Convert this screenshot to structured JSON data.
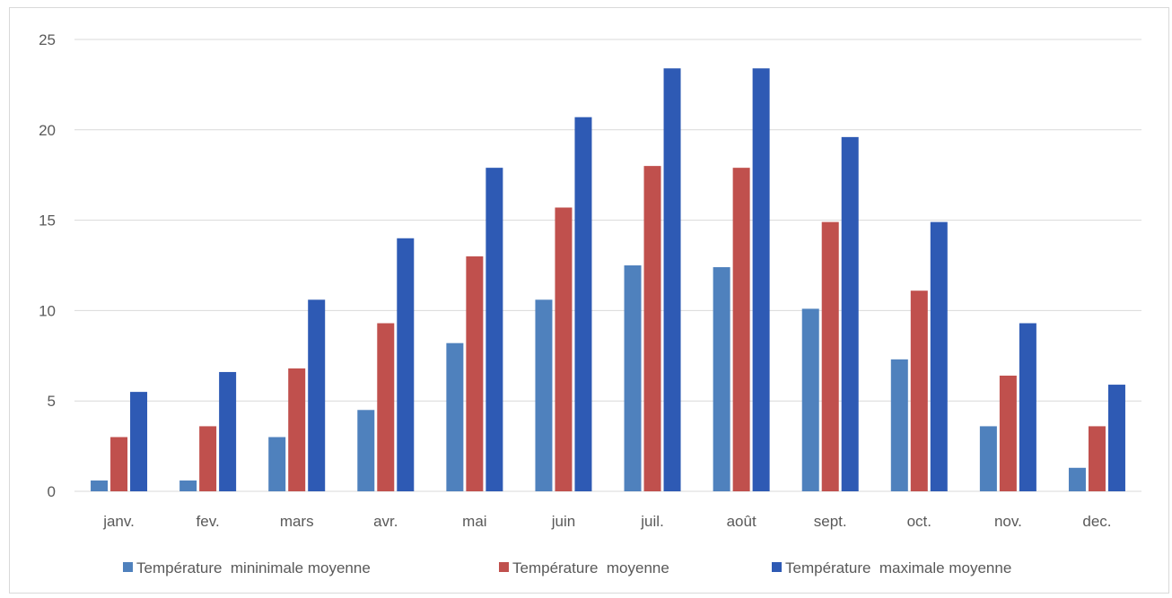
{
  "chart_data": {
    "type": "bar",
    "title": "",
    "xlabel": "",
    "ylabel": "",
    "ylim": [
      0,
      25
    ],
    "yticks": [
      0,
      5,
      10,
      15,
      20,
      25
    ],
    "grid": true,
    "legend_position": "bottom",
    "categories": [
      "janv.",
      "fev.",
      "mars",
      "avr.",
      "mai",
      "juin",
      "juil.",
      "août",
      "sept.",
      "oct.",
      "nov.",
      "dec."
    ],
    "series": [
      {
        "name": "Température  mininimale moyenne",
        "color": "#4f81bd",
        "values": [
          0.6,
          0.6,
          3.0,
          4.5,
          8.2,
          10.6,
          12.5,
          12.4,
          10.1,
          7.3,
          3.6,
          1.3
        ]
      },
      {
        "name": "Température  moyenne",
        "color": "#c0504d",
        "values": [
          3.0,
          3.6,
          6.8,
          9.3,
          13.0,
          15.7,
          18.0,
          17.9,
          14.9,
          11.1,
          6.4,
          3.6
        ]
      },
      {
        "name": "Température  maximale moyenne",
        "color": "#2e5ab4",
        "values": [
          5.5,
          6.6,
          10.6,
          14.0,
          17.9,
          20.7,
          23.4,
          23.4,
          19.6,
          14.9,
          9.3,
          5.9
        ]
      }
    ]
  }
}
